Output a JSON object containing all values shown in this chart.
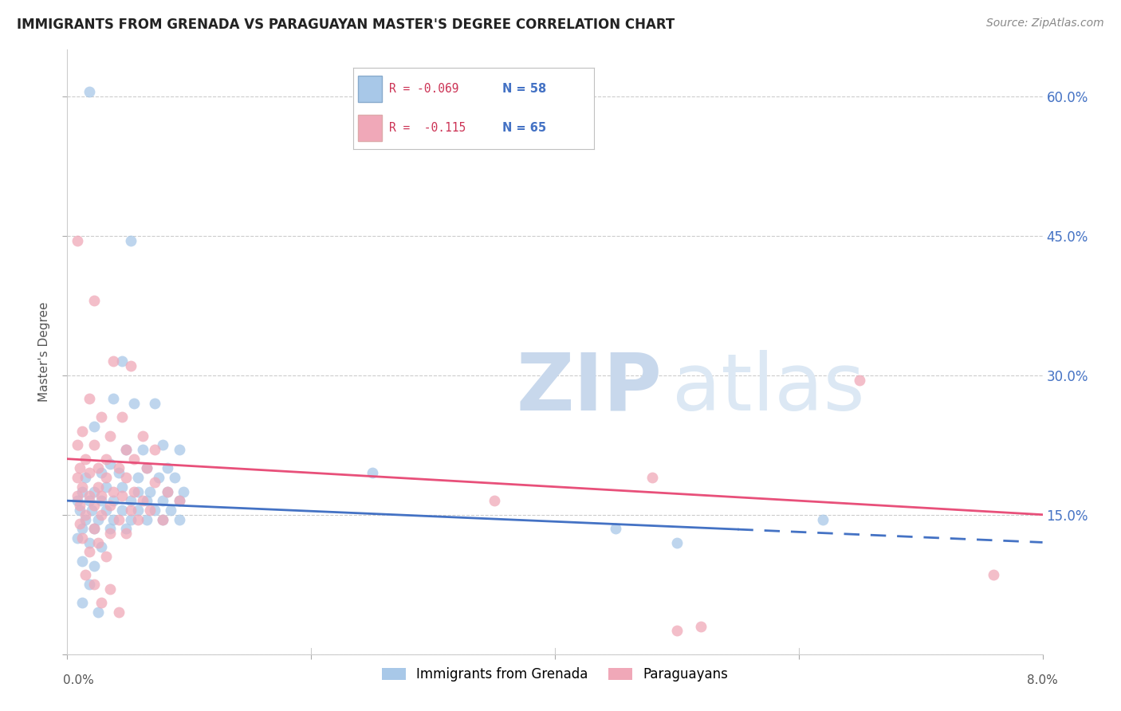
{
  "title": "IMMIGRANTS FROM GRENADA VS PARAGUAYAN MASTER'S DEGREE CORRELATION CHART",
  "source": "Source: ZipAtlas.com",
  "ylabel": "Master's Degree",
  "xlim": [
    0.0,
    8.0
  ],
  "ylim": [
    0.0,
    65.0
  ],
  "yticks": [
    0.0,
    15.0,
    30.0,
    45.0,
    60.0
  ],
  "ytick_labels": [
    "",
    "15.0%",
    "30.0%",
    "45.0%",
    "60.0%"
  ],
  "xticks": [
    0.0,
    2.0,
    4.0,
    6.0,
    8.0
  ],
  "blue_color": "#a8c8e8",
  "pink_color": "#f0a8b8",
  "trend_blue": "#4472c4",
  "trend_pink": "#e8507a",
  "blue_scatter": [
    [
      0.18,
      60.5
    ],
    [
      0.52,
      44.5
    ],
    [
      0.45,
      31.5
    ],
    [
      0.38,
      27.5
    ],
    [
      0.55,
      27.0
    ],
    [
      0.72,
      27.0
    ],
    [
      0.22,
      24.5
    ],
    [
      0.48,
      22.0
    ],
    [
      0.62,
      22.0
    ],
    [
      0.78,
      22.5
    ],
    [
      0.92,
      22.0
    ],
    [
      0.35,
      20.5
    ],
    [
      0.65,
      20.0
    ],
    [
      0.82,
      20.0
    ],
    [
      0.15,
      19.0
    ],
    [
      0.28,
      19.5
    ],
    [
      0.42,
      19.5
    ],
    [
      0.58,
      19.0
    ],
    [
      0.75,
      19.0
    ],
    [
      0.88,
      19.0
    ],
    [
      0.12,
      17.5
    ],
    [
      0.22,
      17.5
    ],
    [
      0.32,
      18.0
    ],
    [
      0.45,
      18.0
    ],
    [
      0.58,
      17.5
    ],
    [
      0.68,
      17.5
    ],
    [
      0.82,
      17.5
    ],
    [
      0.95,
      17.5
    ],
    [
      0.08,
      16.5
    ],
    [
      0.18,
      16.5
    ],
    [
      0.28,
      16.5
    ],
    [
      0.38,
      16.5
    ],
    [
      0.52,
      16.5
    ],
    [
      0.65,
      16.5
    ],
    [
      0.78,
      16.5
    ],
    [
      0.92,
      16.5
    ],
    [
      0.1,
      15.5
    ],
    [
      0.2,
      15.5
    ],
    [
      0.32,
      15.5
    ],
    [
      0.45,
      15.5
    ],
    [
      0.58,
      15.5
    ],
    [
      0.72,
      15.5
    ],
    [
      0.85,
      15.5
    ],
    [
      0.15,
      14.5
    ],
    [
      0.25,
      14.5
    ],
    [
      0.38,
      14.5
    ],
    [
      0.52,
      14.5
    ],
    [
      0.65,
      14.5
    ],
    [
      0.78,
      14.5
    ],
    [
      0.92,
      14.5
    ],
    [
      0.12,
      13.5
    ],
    [
      0.22,
      13.5
    ],
    [
      0.35,
      13.5
    ],
    [
      0.48,
      13.5
    ],
    [
      0.08,
      12.5
    ],
    [
      0.18,
      12.0
    ],
    [
      0.28,
      11.5
    ],
    [
      0.12,
      10.0
    ],
    [
      0.22,
      9.5
    ],
    [
      0.18,
      7.5
    ],
    [
      0.12,
      5.5
    ],
    [
      0.25,
      4.5
    ],
    [
      2.5,
      19.5
    ],
    [
      4.5,
      13.5
    ],
    [
      5.0,
      12.0
    ],
    [
      6.2,
      14.5
    ]
  ],
  "pink_scatter": [
    [
      0.08,
      44.5
    ],
    [
      0.22,
      38.0
    ],
    [
      0.38,
      31.5
    ],
    [
      0.52,
      31.0
    ],
    [
      0.18,
      27.5
    ],
    [
      0.28,
      25.5
    ],
    [
      0.45,
      25.5
    ],
    [
      0.12,
      24.0
    ],
    [
      0.35,
      23.5
    ],
    [
      0.62,
      23.5
    ],
    [
      0.08,
      22.5
    ],
    [
      0.22,
      22.5
    ],
    [
      0.48,
      22.0
    ],
    [
      0.72,
      22.0
    ],
    [
      0.15,
      21.0
    ],
    [
      0.32,
      21.0
    ],
    [
      0.55,
      21.0
    ],
    [
      0.1,
      20.0
    ],
    [
      0.25,
      20.0
    ],
    [
      0.42,
      20.0
    ],
    [
      0.65,
      20.0
    ],
    [
      0.08,
      19.0
    ],
    [
      0.18,
      19.5
    ],
    [
      0.32,
      19.0
    ],
    [
      0.48,
      19.0
    ],
    [
      0.72,
      18.5
    ],
    [
      0.12,
      18.0
    ],
    [
      0.25,
      18.0
    ],
    [
      0.38,
      17.5
    ],
    [
      0.55,
      17.5
    ],
    [
      0.82,
      17.5
    ],
    [
      0.08,
      17.0
    ],
    [
      0.18,
      17.0
    ],
    [
      0.28,
      17.0
    ],
    [
      0.45,
      17.0
    ],
    [
      0.62,
      16.5
    ],
    [
      0.92,
      16.5
    ],
    [
      0.1,
      16.0
    ],
    [
      0.22,
      16.0
    ],
    [
      0.35,
      16.0
    ],
    [
      0.52,
      15.5
    ],
    [
      0.68,
      15.5
    ],
    [
      0.15,
      15.0
    ],
    [
      0.28,
      15.0
    ],
    [
      0.42,
      14.5
    ],
    [
      0.58,
      14.5
    ],
    [
      0.78,
      14.5
    ],
    [
      0.1,
      14.0
    ],
    [
      0.22,
      13.5
    ],
    [
      0.35,
      13.0
    ],
    [
      0.48,
      13.0
    ],
    [
      0.12,
      12.5
    ],
    [
      0.25,
      12.0
    ],
    [
      0.18,
      11.0
    ],
    [
      0.32,
      10.5
    ],
    [
      0.15,
      8.5
    ],
    [
      0.22,
      7.5
    ],
    [
      0.35,
      7.0
    ],
    [
      0.28,
      5.5
    ],
    [
      0.42,
      4.5
    ],
    [
      3.5,
      16.5
    ],
    [
      4.8,
      19.0
    ],
    [
      5.0,
      2.5
    ],
    [
      5.2,
      3.0
    ],
    [
      6.5,
      29.5
    ],
    [
      7.6,
      8.5
    ]
  ],
  "blue_trend_start_x": 0.0,
  "blue_trend_end_solid": 5.5,
  "blue_trend_end_dash": 8.0,
  "pink_trend_start_x": 0.0,
  "pink_trend_end_x": 8.0
}
